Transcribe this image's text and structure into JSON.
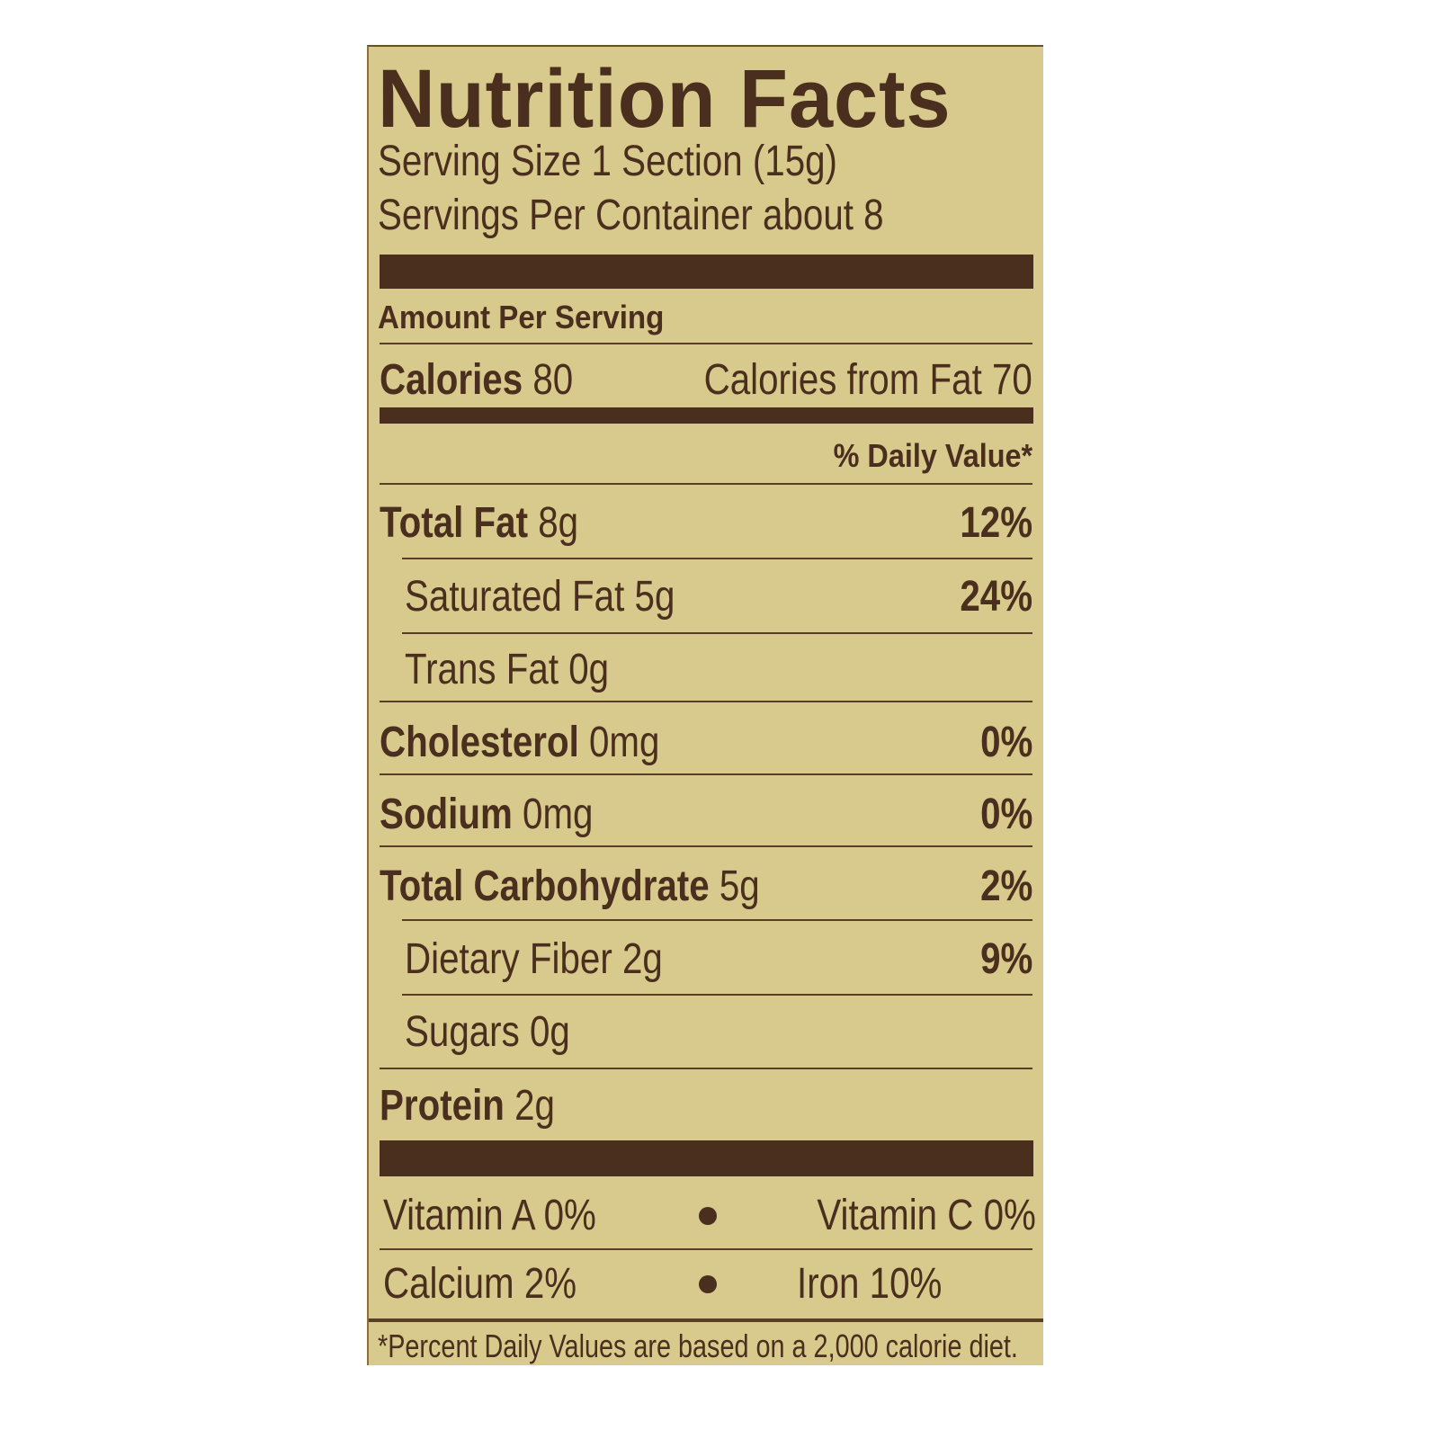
{
  "title": "Nutrition Facts",
  "serving_size": "Serving Size 1 Section (15g)",
  "servings_per_container": "Servings Per Container about 8",
  "amount_per_serving": "Amount Per Serving",
  "calories": {
    "label": "Calories",
    "value": "80",
    "from_fat_label": "Calories from Fat",
    "from_fat_value": "70"
  },
  "daily_value_header": "% Daily Value*",
  "nutrients": [
    {
      "label": "Total Fat",
      "amount": "8g",
      "dv": "12%"
    },
    {
      "label": "Saturated Fat",
      "amount": "5g",
      "dv": "24%"
    },
    {
      "label": "Trans Fat",
      "amount": "0g",
      "dv": ""
    },
    {
      "label": "Cholesterol",
      "amount": "0mg",
      "dv": "0%"
    },
    {
      "label": "Sodium",
      "amount": "0mg",
      "dv": "0%"
    },
    {
      "label": "Total Carbohydrate",
      "amount": "5g",
      "dv": "2%"
    },
    {
      "label": "Dietary Fiber",
      "amount": "2g",
      "dv": "9%"
    },
    {
      "label": "Sugars",
      "amount": "0g",
      "dv": ""
    },
    {
      "label": "Protein",
      "amount": "2g",
      "dv": ""
    }
  ],
  "vitamins": [
    {
      "left": "Vitamin A 0%",
      "right": "Vitamin C 0%"
    },
    {
      "left": "Calcium 2%",
      "right": "Iron 10%"
    }
  ],
  "footnote": "*Percent Daily Values are based on a 2,000 calorie diet.",
  "colors": {
    "background": "#d8c98c",
    "ink": "#4a2e1e"
  }
}
